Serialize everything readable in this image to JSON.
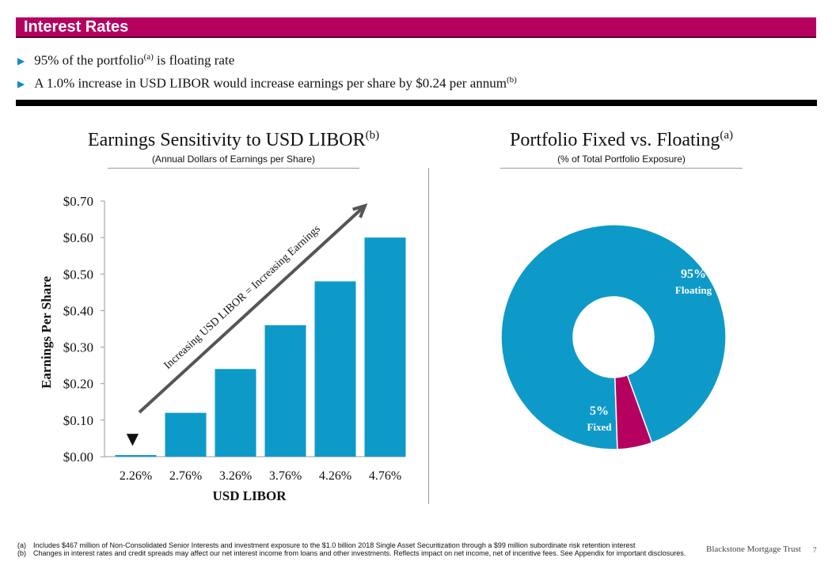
{
  "header": {
    "title": "Interest Rates"
  },
  "bullets": [
    {
      "text": "95% of the portfolio",
      "note": "(a)",
      "tail": " is floating rate"
    },
    {
      "text": "A 1.0% increase in USD LIBOR would increase earnings per share by $0.24 per annum",
      "note": "(b)",
      "tail": ""
    }
  ],
  "left_chart": {
    "title": "Earnings Sensitivity to USD LIBOR",
    "title_note": "(b)",
    "subtitle": "(Annual Dollars of Earnings per Share)"
  },
  "right_chart": {
    "title": "Portfolio Fixed vs. Floating",
    "title_note": "(a)",
    "subtitle": "(% of Total Portfolio Exposure)"
  },
  "chart_data": [
    {
      "type": "bar",
      "categories": [
        "2.26%",
        "2.76%",
        "3.26%",
        "3.76%",
        "4.26%",
        "4.76%"
      ],
      "values": [
        0.0,
        0.12,
        0.24,
        0.36,
        0.48,
        0.6
      ],
      "xlabel": "USD LIBOR",
      "ylabel": "Earnings Per Share",
      "ylim": [
        0,
        0.7
      ],
      "yticks": [
        "$0.00",
        "$0.10",
        "$0.20",
        "$0.30",
        "$0.40",
        "$0.50",
        "$0.60",
        "$0.70"
      ],
      "bar_color": "#0e9ac8",
      "annotation": "Increasing USD LIBOR = Increasing Earnings",
      "marker": "▼",
      "grid": false
    },
    {
      "type": "pie",
      "donut": true,
      "slices": [
        {
          "label": "Floating",
          "value": 95,
          "display": "95%",
          "color": "#0e9ac8"
        },
        {
          "label": "Fixed",
          "value": 5,
          "display": "5%",
          "color": "#b5005f"
        }
      ]
    }
  ],
  "footnotes": [
    {
      "label": "(a)",
      "text": "Includes $467 million of Non-Consolidated Senior Interests and investment exposure to the $1.0 billion 2018 Single Asset Securitization through a $99 million subordinate risk retention interest"
    },
    {
      "label": "(b)",
      "text": "Changes in interest rates and credit spreads may affect our net interest income from loans and other investments. Reflects impact on net income, net of incentive fees. See Appendix for important disclosures."
    }
  ],
  "footer": {
    "company": "Blackstone Mortgage Trust",
    "page": "7"
  }
}
